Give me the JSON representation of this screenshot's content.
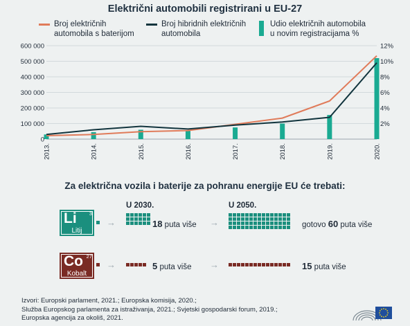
{
  "chart_data": {
    "type": "line",
    "title": "Električni automobili registrirani u EU-27",
    "categories": [
      "2013.",
      "2014.",
      "2015.",
      "2016.",
      "2017.",
      "2018.",
      "2019.",
      "2020."
    ],
    "series": [
      {
        "name": "Broj električnih automobila s baterijom",
        "type": "line",
        "axis": "left",
        "color": "#e07b5a",
        "values": [
          22000,
          30000,
          48000,
          55000,
          95000,
          135000,
          245000,
          535000
        ]
      },
      {
        "name": "Broj hibridnih električnih automobila",
        "type": "line",
        "axis": "left",
        "color": "#11343d",
        "values": [
          30000,
          60000,
          82000,
          65000,
          90000,
          110000,
          140000,
          490000
        ]
      },
      {
        "name": "Udio električnih automobila u novim registracijama %",
        "type": "bar",
        "axis": "right",
        "color": "#1aaa92",
        "values": [
          0.6,
          0.9,
          1.2,
          1.1,
          1.5,
          2.0,
          3.1,
          10.4
        ]
      }
    ],
    "y_left": {
      "ylim": [
        0,
        600000
      ],
      "ticks": [
        "0",
        "100 000",
        "200 000",
        "300 000",
        "400 000",
        "500 000",
        "600 000"
      ]
    },
    "y_right": {
      "ylim": [
        0,
        12
      ],
      "ticks": [
        "2%",
        "4%",
        "6%",
        "8%",
        "10%",
        "12%"
      ]
    },
    "grid": true,
    "legend_position": "top"
  },
  "legend": {
    "bev": [
      "Broj električnih",
      "automobila s baterijom"
    ],
    "hev": [
      "Broj hibridnih električnih",
      "automobila"
    ],
    "share": [
      "Udio električnih automobila",
      "u novim registracijama %"
    ]
  },
  "infographic": {
    "title": "Za električna vozila i baterije za pohranu energije EU će trebati:",
    "year1": "U 2030.",
    "year2": "U 2050.",
    "lithium": {
      "symbol": "Li",
      "number": "3",
      "name": "Litij",
      "color": "#1b8f7e",
      "value_2030": "18",
      "text_2030": "puta više",
      "prefix_2050": "gotovo",
      "value_2050": "60",
      "text_2050": "puta više"
    },
    "cobalt": {
      "symbol": "Co",
      "number": "27",
      "name": "Kobalt",
      "color": "#7a2b24",
      "value_2030": "5",
      "text_2030": "puta više",
      "value_2050": "15",
      "text_2050": "puta više"
    }
  },
  "sources": [
    "Izvori: Europski parlament, 2021.; Europska komisija, 2020.;",
    "Služba Europskog parlamenta za istraživanja, 2021.; Svjetski gospodarski forum, 2019.;",
    "Europska agencija za okoliš, 2021."
  ]
}
